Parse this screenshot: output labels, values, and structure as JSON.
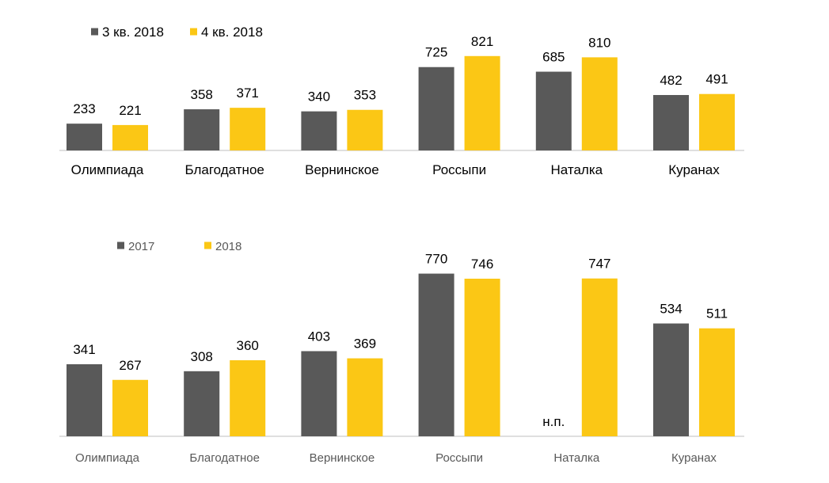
{
  "chart_data": [
    {
      "type": "bar",
      "categories": [
        "Олимпиада",
        "Благодатное",
        "Вернинское",
        "Россыпи",
        "Наталка",
        "Куранах"
      ],
      "series": [
        {
          "name": "3 кв. 2018",
          "color": "#595959",
          "values": [
            233,
            358,
            340,
            725,
            685,
            482
          ],
          "labels": [
            "233",
            "358",
            "340",
            "725",
            "685",
            "482"
          ]
        },
        {
          "name": "4 кв. 2018",
          "color": "#FBC715",
          "values": [
            221,
            371,
            353,
            821,
            810,
            491
          ],
          "labels": [
            "221",
            "371",
            "353",
            "821",
            "810",
            "491"
          ]
        }
      ],
      "legend_position": "top-left",
      "grid": false,
      "ylim": [
        0,
        900
      ]
    },
    {
      "type": "bar",
      "categories": [
        "Олимпиада",
        "Благодатное",
        "Вернинское",
        "Россыпи",
        "Наталка",
        "Куранах"
      ],
      "series": [
        {
          "name": "2017",
          "color": "#595959",
          "values": [
            341,
            308,
            403,
            770,
            null,
            534
          ],
          "labels": [
            "341",
            "308",
            "403",
            "770",
            "н.п.",
            "534"
          ]
        },
        {
          "name": "2018",
          "color": "#FBC715",
          "values": [
            267,
            360,
            369,
            746,
            747,
            511
          ],
          "labels": [
            "267",
            "360",
            "369",
            "746",
            "747",
            "511"
          ]
        }
      ],
      "legend_position": "top-left",
      "grid": false,
      "ylim": [
        0,
        800
      ]
    }
  ]
}
